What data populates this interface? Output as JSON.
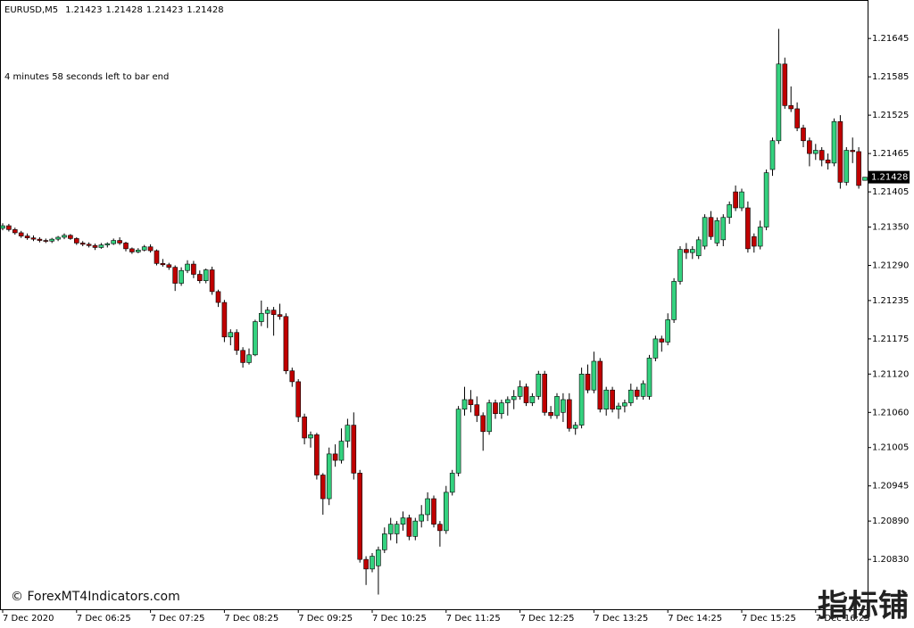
{
  "chart_data": {
    "type": "candlestick",
    "title": "EURUSD,M5",
    "annotation": "4 minutes 58 seconds left to bar end",
    "watermark": "© ForexMT4Indicators.com",
    "watermark_cn": "指标铺",
    "bull_color": "#34d27f",
    "bear_color": "#c00000",
    "ylim": [
      1.20752,
      1.21701
    ],
    "yticks": [
      1.21645,
      1.21585,
      1.21525,
      1.21465,
      1.21405,
      {
        "value": 1.2135,
        "label": "1.21350"
      },
      {
        "value": 1.2129,
        "label": "1.21290"
      },
      1.21235,
      1.21175,
      {
        "value": 1.2112,
        "label": "1.21120"
      },
      {
        "value": 1.2106,
        "label": "1.21060"
      },
      1.21005,
      1.20945,
      {
        "value": 1.2089,
        "label": "1.20890"
      },
      {
        "value": 1.2083,
        "label": "1.20830"
      }
    ],
    "categories": [
      "7 Dec 2020",
      null,
      null,
      null,
      null,
      null,
      null,
      null,
      null,
      null,
      null,
      null,
      "7 Dec 06:25",
      null,
      null,
      null,
      null,
      null,
      null,
      null,
      null,
      null,
      null,
      null,
      "7 Dec 07:25",
      null,
      null,
      null,
      null,
      null,
      null,
      null,
      null,
      null,
      null,
      null,
      "7 Dec 08:25",
      null,
      null,
      null,
      null,
      null,
      null,
      null,
      null,
      null,
      null,
      null,
      "7 Dec 09:25",
      null,
      null,
      null,
      null,
      null,
      null,
      null,
      null,
      null,
      null,
      null,
      "7 Dec 10:25",
      null,
      null,
      null,
      null,
      null,
      null,
      null,
      null,
      null,
      null,
      null,
      "7 Dec 11:25",
      null,
      null,
      null,
      null,
      null,
      null,
      null,
      null,
      null,
      null,
      null,
      "7 Dec 12:25",
      null,
      null,
      null,
      null,
      null,
      null,
      null,
      null,
      null,
      null,
      null,
      "7 Dec 13:25",
      null,
      null,
      null,
      null,
      null,
      null,
      null,
      null,
      null,
      null,
      null,
      "7 Dec 14:25",
      null,
      null,
      null,
      null,
      null,
      null,
      null,
      null,
      null,
      null,
      null,
      "7 Dec 15:25",
      null,
      null,
      null,
      null,
      null,
      null,
      null,
      null,
      null,
      null,
      null,
      "7 Dec 16:25",
      null,
      null,
      null,
      null,
      null,
      null,
      null,
      null
    ],
    "candles": [
      [
        1.21348,
        1.21356,
        1.21345,
        1.21352
      ],
      [
        1.21352,
        1.21355,
        1.21343,
        1.21346
      ],
      [
        1.21346,
        1.21349,
        1.21338,
        1.21341
      ],
      [
        1.21341,
        1.21344,
        1.21333,
        1.21336
      ],
      [
        1.21336,
        1.2134,
        1.2133,
        1.21333
      ],
      [
        1.21333,
        1.21337,
        1.21328,
        1.21331
      ],
      [
        1.21331,
        1.21334,
        1.21326,
        1.21329
      ],
      [
        1.21329,
        1.21332,
        1.21325,
        1.21328
      ],
      [
        1.21328,
        1.21333,
        1.21325,
        1.21331
      ],
      [
        1.21331,
        1.21336,
        1.21328,
        1.21334
      ],
      [
        1.21334,
        1.2134,
        1.21331,
        1.21337
      ],
      [
        1.21337,
        1.21339,
        1.2133,
        1.21332
      ],
      [
        1.21332,
        1.21334,
        1.21322,
        1.21325
      ],
      [
        1.21325,
        1.21328,
        1.2132,
        1.21323
      ],
      [
        1.21323,
        1.21326,
        1.21318,
        1.21321
      ],
      [
        1.21321,
        1.21324,
        1.21314,
        1.21318
      ],
      [
        1.21318,
        1.21325,
        1.21316,
        1.21322
      ],
      [
        1.21322,
        1.21326,
        1.21318,
        1.21324
      ],
      [
        1.21324,
        1.21332,
        1.21322,
        1.21329
      ],
      [
        1.21329,
        1.21334,
        1.21322,
        1.21325
      ],
      [
        1.21325,
        1.21327,
        1.21312,
        1.21316
      ],
      [
        1.21316,
        1.21318,
        1.21308,
        1.21311
      ],
      [
        1.21311,
        1.21317,
        1.21309,
        1.21314
      ],
      [
        1.21314,
        1.21322,
        1.21312,
        1.21319
      ],
      [
        1.21319,
        1.21323,
        1.2131,
        1.21313
      ],
      [
        1.21313,
        1.21315,
        1.2129,
        1.21293
      ],
      [
        1.21293,
        1.213,
        1.21288,
        1.21291
      ],
      [
        1.21291,
        1.21294,
        1.21283,
        1.21287
      ],
      [
        1.21287,
        1.2129,
        1.2125,
        1.21262
      ],
      [
        1.21262,
        1.21287,
        1.21258,
        1.21282
      ],
      [
        1.21282,
        1.21298,
        1.21278,
        1.21292
      ],
      [
        1.21292,
        1.21297,
        1.2127,
        1.21276
      ],
      [
        1.21276,
        1.21282,
        1.21262,
        1.21266
      ],
      [
        1.21266,
        1.21285,
        1.21262,
        1.21283
      ],
      [
        1.21283,
        1.21288,
        1.21244,
        1.21249
      ],
      [
        1.21249,
        1.21252,
        1.21225,
        1.21232
      ],
      [
        1.21232,
        1.21236,
        1.2117,
        1.21178
      ],
      [
        1.21178,
        1.2119,
        1.21165,
        1.21185
      ],
      [
        1.21185,
        1.2119,
        1.2115,
        1.21157
      ],
      [
        1.21157,
        1.21162,
        1.2113,
        1.21138
      ],
      [
        1.21138,
        1.2116,
        1.21135,
        1.2115
      ],
      [
        1.2115,
        1.21205,
        1.21148,
        1.21202
      ],
      [
        1.21202,
        1.21235,
        1.21195,
        1.21215
      ],
      [
        1.21215,
        1.21225,
        1.21192,
        1.2122
      ],
      [
        1.2122,
        1.21225,
        1.2118,
        1.21213
      ],
      [
        1.21213,
        1.2123,
        1.21205,
        1.2121
      ],
      [
        1.2121,
        1.21215,
        1.2112,
        1.21125
      ],
      [
        1.21125,
        1.2113,
        1.211,
        1.21108
      ],
      [
        1.21108,
        1.21112,
        1.21045,
        1.21053
      ],
      [
        1.21053,
        1.21058,
        1.2101,
        1.2102
      ],
      [
        1.2102,
        1.2103,
        1.21005,
        1.21025
      ],
      [
        1.21025,
        1.21028,
        1.20955,
        1.20962
      ],
      [
        1.20962,
        1.20965,
        1.209,
        1.20925
      ],
      [
        1.20925,
        1.21005,
        1.20915,
        1.20995
      ],
      [
        1.20995,
        1.2101,
        1.20975,
        1.20985
      ],
      [
        1.20985,
        1.21035,
        1.2098,
        1.21015
      ],
      [
        1.21015,
        1.2105,
        1.21005,
        1.2104
      ],
      [
        1.2104,
        1.2106,
        1.20955,
        1.20965
      ],
      [
        1.20965,
        1.2097,
        1.20825,
        1.2083
      ],
      [
        1.2083,
        1.20835,
        1.2079,
        1.20815
      ],
      [
        1.20815,
        1.2084,
        1.2081,
        1.20835
      ],
      [
        1.2082,
        1.2085,
        1.20775,
        1.20845
      ],
      [
        1.20845,
        1.2088,
        1.2084,
        1.2087
      ],
      [
        1.2087,
        1.20895,
        1.2086,
        1.20885
      ],
      [
        1.2087,
        1.2089,
        1.20855,
        1.20885
      ],
      [
        1.20885,
        1.20905,
        1.20875,
        1.20895
      ],
      [
        1.20895,
        1.209,
        1.2086,
        1.20866
      ],
      [
        1.20866,
        1.20895,
        1.2086,
        1.2089
      ],
      [
        1.2089,
        1.20915,
        1.2088,
        1.209
      ],
      [
        1.209,
        1.20935,
        1.2089,
        1.20925
      ],
      [
        1.20925,
        1.2093,
        1.2088,
        1.20885
      ],
      [
        1.20885,
        1.2089,
        1.2085,
        1.20875
      ],
      [
        1.20875,
        1.20945,
        1.2087,
        1.20935
      ],
      [
        1.20935,
        1.2097,
        1.2093,
        1.20965
      ],
      [
        1.20965,
        1.2107,
        1.2096,
        1.21065
      ],
      [
        1.21065,
        1.211,
        1.21055,
        1.2108
      ],
      [
        1.2108,
        1.21095,
        1.2106,
        1.21072
      ],
      [
        1.21072,
        1.21085,
        1.21045,
        1.21055
      ],
      [
        1.21055,
        1.2106,
        1.21,
        1.2103
      ],
      [
        1.2103,
        1.2108,
        1.21025,
        1.21075
      ],
      [
        1.21075,
        1.2108,
        1.2105,
        1.21058
      ],
      [
        1.21058,
        1.2108,
        1.2105,
        1.21075
      ],
      [
        1.21075,
        1.21085,
        1.21055,
        1.2108
      ],
      [
        1.2108,
        1.21095,
        1.21065,
        1.21085
      ],
      [
        1.21085,
        1.2111,
        1.2108,
        1.211
      ],
      [
        1.211,
        1.21105,
        1.2107,
        1.21075
      ],
      [
        1.21075,
        1.2109,
        1.2107,
        1.21085
      ],
      [
        1.21085,
        1.21125,
        1.2108,
        1.2112
      ],
      [
        1.2112,
        1.21125,
        1.21055,
        1.2106
      ],
      [
        1.2106,
        1.2107,
        1.2105,
        1.21055
      ],
      [
        1.21055,
        1.2109,
        1.2105,
        1.21085
      ],
      [
        1.2106,
        1.2109,
        1.21045,
        1.2108
      ],
      [
        1.2108,
        1.2109,
        1.2103,
        1.21035
      ],
      [
        1.21035,
        1.21045,
        1.21025,
        1.2104
      ],
      [
        1.2104,
        1.2113,
        1.21035,
        1.2112
      ],
      [
        1.2112,
        1.21135,
        1.2109,
        1.21095
      ],
      [
        1.21095,
        1.21155,
        1.2109,
        1.2114
      ],
      [
        1.2114,
        1.21145,
        1.2106,
        1.21065
      ],
      [
        1.21065,
        1.211,
        1.21055,
        1.21095
      ],
      [
        1.21095,
        1.211,
        1.2106,
        1.21065
      ],
      [
        1.21065,
        1.21075,
        1.2105,
        1.2107
      ],
      [
        1.2107,
        1.2108,
        1.2106,
        1.21075
      ],
      [
        1.21075,
        1.21105,
        1.2107,
        1.21095
      ],
      [
        1.21095,
        1.211,
        1.2108,
        1.21085
      ],
      [
        1.21085,
        1.2111,
        1.2108,
        1.21105
      ],
      [
        1.21085,
        1.2115,
        1.2108,
        1.21145
      ],
      [
        1.21145,
        1.2118,
        1.2114,
        1.21175
      ],
      [
        1.21175,
        1.2118,
        1.21155,
        1.2117
      ],
      [
        1.2117,
        1.21215,
        1.21165,
        1.21205
      ],
      [
        1.21205,
        1.2127,
        1.212,
        1.21265
      ],
      [
        1.21265,
        1.2132,
        1.2126,
        1.21315
      ],
      [
        1.21315,
        1.21325,
        1.213,
        1.2131
      ],
      [
        1.2131,
        1.2132,
        1.213,
        1.21315
      ],
      [
        1.21305,
        1.21335,
        1.213,
        1.2133
      ],
      [
        1.2132,
        1.2137,
        1.21315,
        1.21365
      ],
      [
        1.21365,
        1.21375,
        1.2133,
        1.21335
      ],
      [
        1.21325,
        1.21365,
        1.2132,
        1.2136
      ],
      [
        1.2133,
        1.2137,
        1.2132,
        1.21365
      ],
      [
        1.21365,
        1.2139,
        1.21355,
        1.21385
      ],
      [
        1.21405,
        1.21415,
        1.21375,
        1.2138
      ],
      [
        1.2138,
        1.2141,
        1.21375,
        1.21405
      ],
      [
        1.2138,
        1.2139,
        1.2131,
        1.21316
      ],
      [
        1.21335,
        1.2134,
        1.2131,
        1.2132
      ],
      [
        1.2132,
        1.2136,
        1.21315,
        1.2135
      ],
      [
        1.2135,
        1.2144,
        1.21345,
        1.21435
      ],
      [
        1.2144,
        1.2149,
        1.2143,
        1.21485
      ],
      [
        1.21485,
        1.2166,
        1.2148,
        1.21605
      ],
      [
        1.21605,
        1.21615,
        1.21535,
        1.2154
      ],
      [
        1.2154,
        1.2157,
        1.2153,
        1.21535
      ],
      [
        1.21535,
        1.21545,
        1.215,
        1.21505
      ],
      [
        1.21505,
        1.2151,
        1.21475,
        1.21485
      ],
      [
        1.21485,
        1.2149,
        1.21445,
        1.21465
      ],
      [
        1.21465,
        1.2148,
        1.21455,
        1.2147
      ],
      [
        1.2147,
        1.21475,
        1.21445,
        1.21455
      ],
      [
        1.21455,
        1.21465,
        1.2144,
        1.2145
      ],
      [
        1.2145,
        1.2152,
        1.21445,
        1.21515
      ],
      [
        1.21515,
        1.21525,
        1.2141,
        1.2142
      ],
      [
        1.2142,
        1.21475,
        1.21415,
        1.2147
      ],
      [
        1.2147,
        1.2149,
        1.2145,
        1.21468
      ],
      [
        1.21468,
        1.21475,
        1.2141,
        1.21415
      ],
      [
        1.21423,
        1.21428,
        1.21423,
        1.21428
      ]
    ]
  }
}
